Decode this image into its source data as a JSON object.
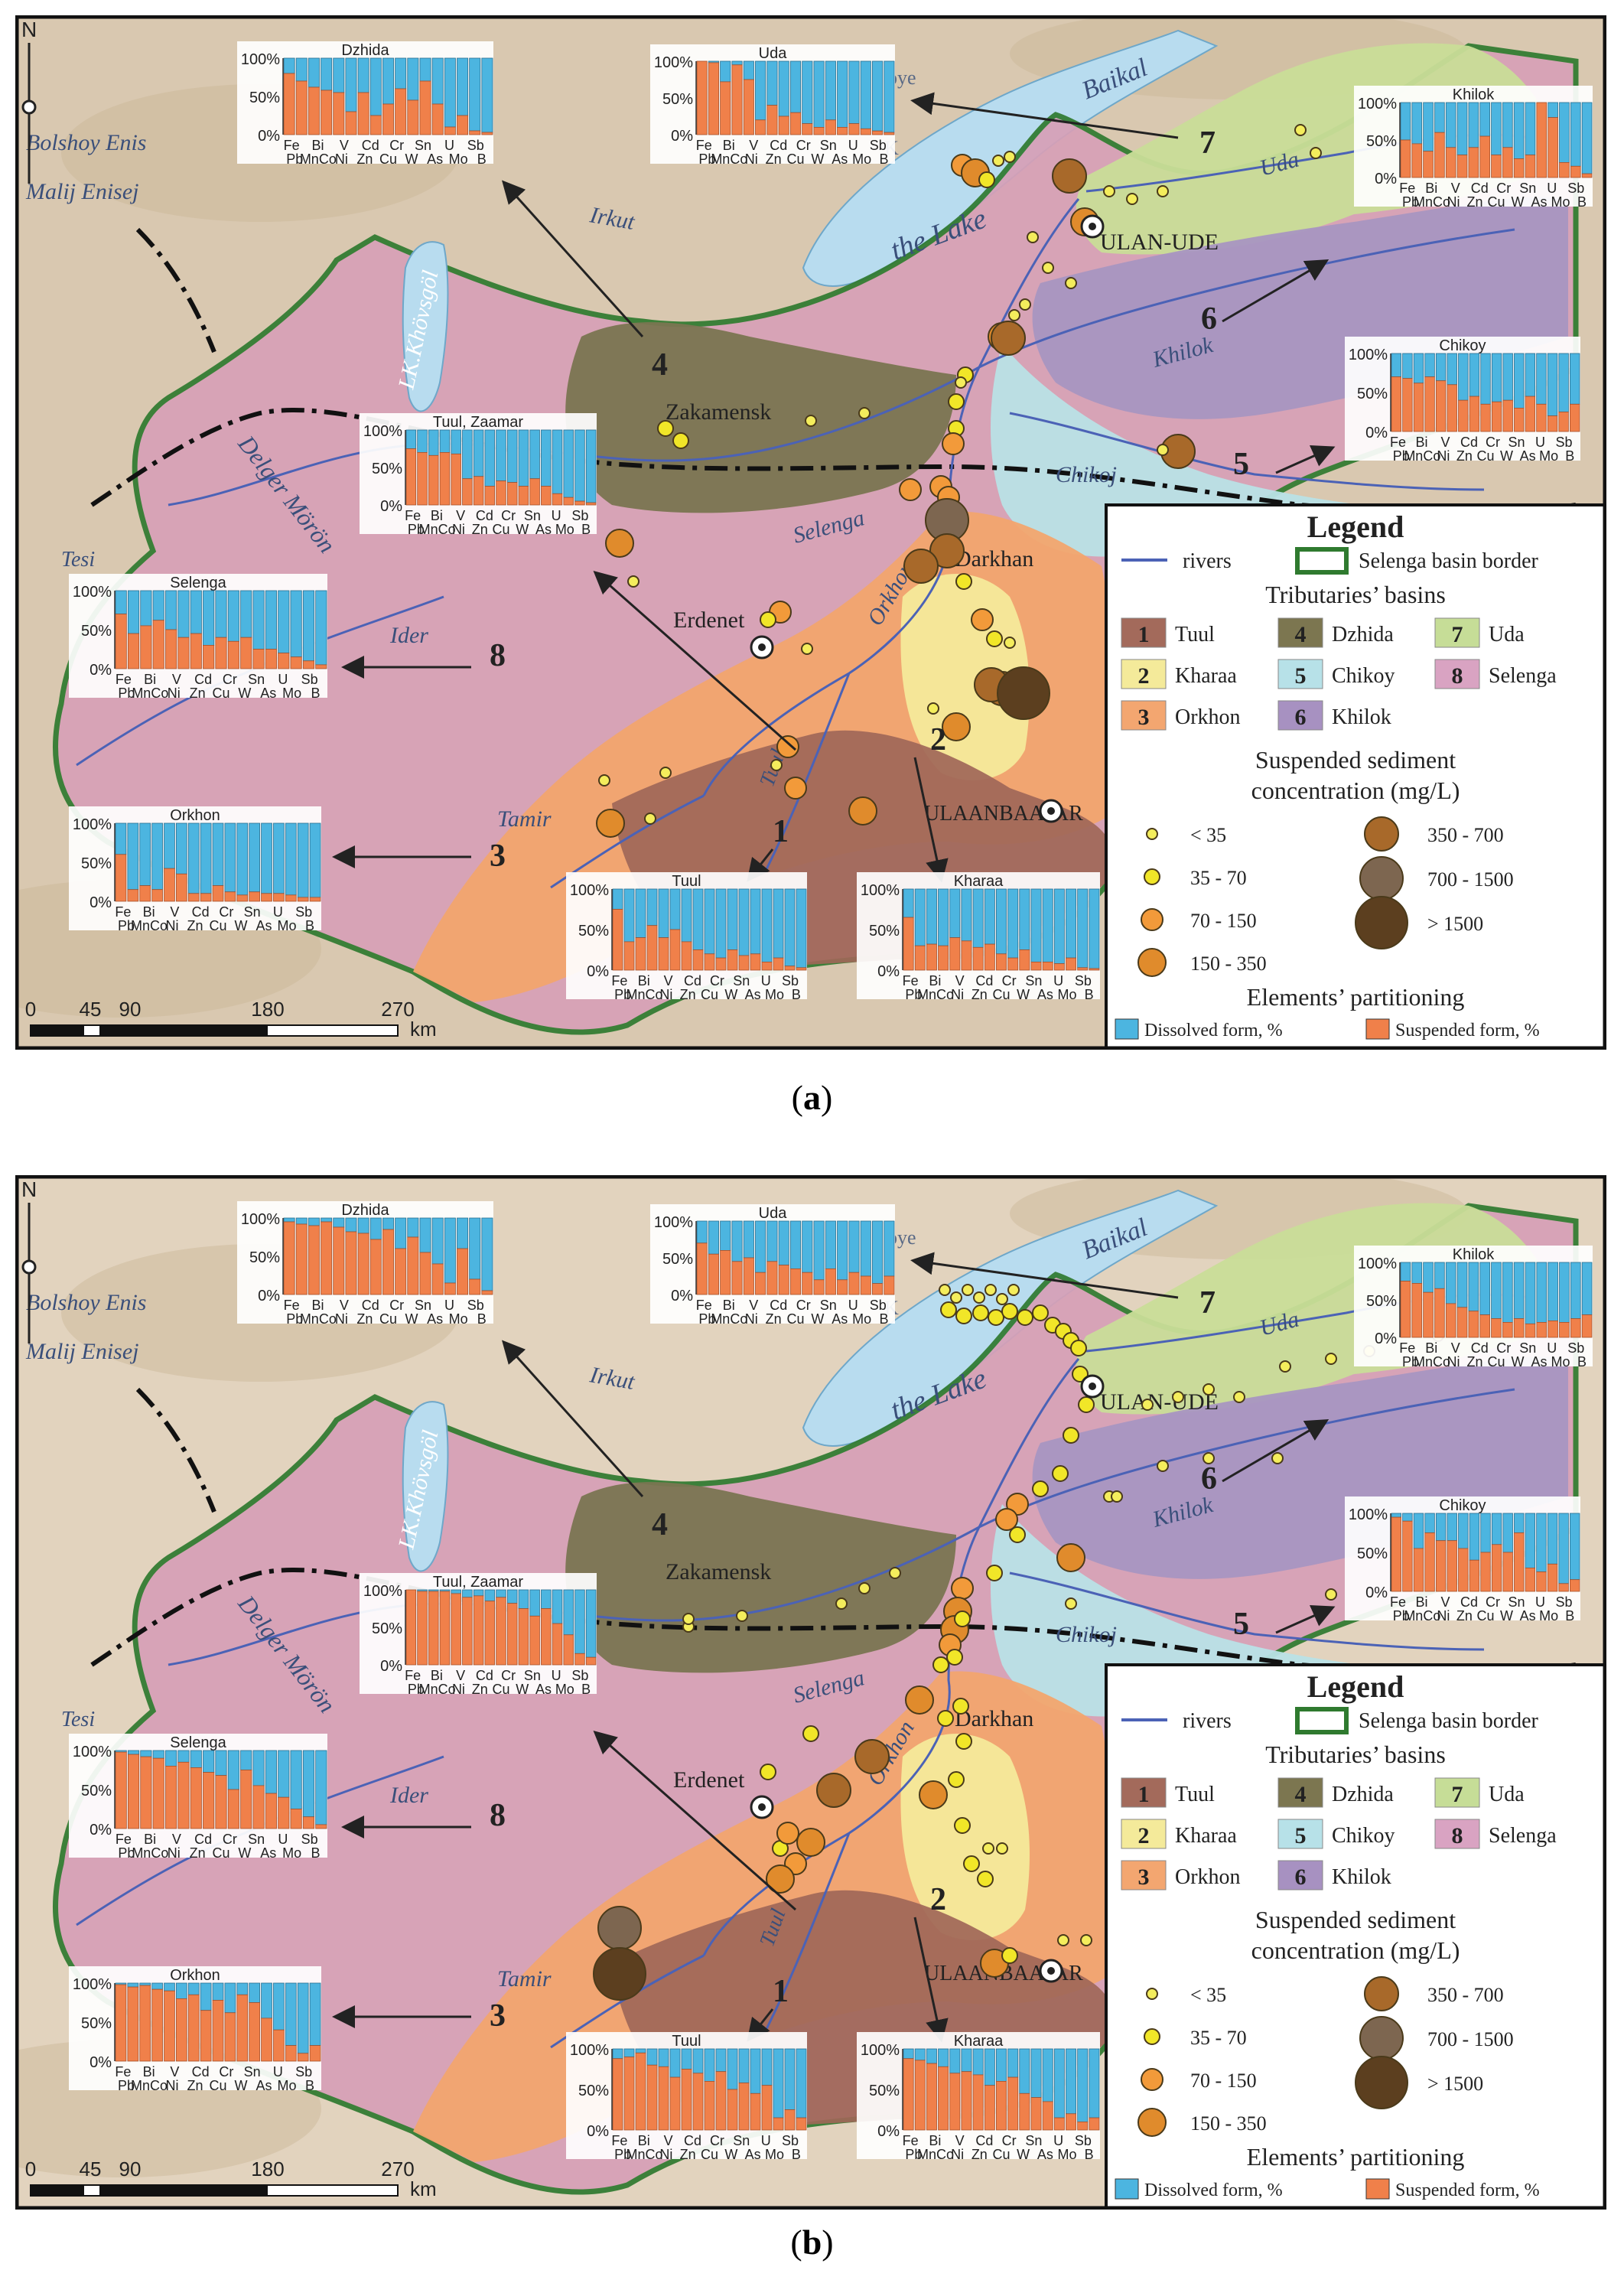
{
  "colors": {
    "dissolved": "#4cb5e0",
    "suspended": "#f0804a",
    "lake": "#b8dcef",
    "relief_a": "#d9c8b0",
    "relief_b": "#e2d3be",
    "border": "#2f7a2f"
  },
  "legend": {
    "title": "Legend",
    "rivers_label": "rivers",
    "border_label": "Selenga basin border",
    "tributaries_title": "Tributaries’ basins",
    "basins": [
      {
        "num": "1",
        "name": "Tuul",
        "color": "#a36a5b"
      },
      {
        "num": "4",
        "name": "Dzhida",
        "color": "#7c7650"
      },
      {
        "num": "7",
        "name": "Uda",
        "color": "#c6dd97"
      },
      {
        "num": "2",
        "name": "Kharaa",
        "color": "#f4ea9a"
      },
      {
        "num": "5",
        "name": "Chikoy",
        "color": "#b7e1e8"
      },
      {
        "num": "8",
        "name": "Selenga",
        "color": "#d9a3c2"
      },
      {
        "num": "3",
        "name": "Orkhon",
        "color": "#f3a670"
      },
      {
        "num": "6",
        "name": "Khilok",
        "color": "#a791c1"
      }
    ],
    "ssc_title_1": "Suspended sediment",
    "ssc_title_2": "concentration (mg/L)",
    "ssc_classes": [
      {
        "label": "< 35",
        "color": "#f4ed5c"
      },
      {
        "label": "35 - 70",
        "color": "#f1e628"
      },
      {
        "label": "70 - 150",
        "color": "#f29a3a"
      },
      {
        "label": "150 - 350",
        "color": "#e08b2c"
      },
      {
        "label": "350 - 700",
        "color": "#a8692a"
      },
      {
        "label": "700 - 1500",
        "color": "#7d6650"
      },
      {
        "label": "> 1500",
        "color": "#5c3f1f"
      }
    ],
    "partition_title": "Elements’ partitioning",
    "dissolved_label": "Dissolved form, %",
    "suspended_label": "Suspended form, %"
  },
  "elements_top": [
    "Fe",
    "Bi",
    "V",
    "Cd",
    "Cr",
    "Sn",
    "U",
    "Sb"
  ],
  "elements_bottom": [
    "Pb",
    "MnCo",
    "Ni",
    "Zn",
    "Cu",
    "W",
    "As",
    "Mo",
    "B"
  ],
  "axis_labels": [
    "100%",
    "50%",
    "0%"
  ],
  "scale": {
    "ticks": [
      "0",
      "45",
      "90",
      "180",
      "270"
    ],
    "unit": "km"
  },
  "north_label": "N",
  "panels": [
    {
      "id": "a",
      "caption_paren_open": "(",
      "caption_letter": "a",
      "caption_paren_close": ")",
      "map_labels": {
        "baikal": "Baikal",
        "lake": "the Lake",
        "irkut": "Irkut",
        "bolshoy": "Bolshoy Enis",
        "malij": "Malij Enisej",
        "khovsgol": "LK.Khövsgöl",
        "delger": "Delger Mörön",
        "tesiin": "Tesi",
        "ider": "Ider",
        "tamir": "Tamir",
        "selenga": "Selenga",
        "orkhon": "Orkhon",
        "tuul": "Tuul",
        "chikoj": "Chikoj",
        "khilok": "Khilok",
        "uda": "Uda",
        "zakamensk": "Zakamensk",
        "darkhan": "Darkhan",
        "erdenet": "Erdenet",
        "ulanude": "ULAN-UDE",
        "ulaanbaatar": "ULAANBAATAR",
        "oye": "oye",
        "k": "K"
      },
      "basin_numbers": [
        "1",
        "2",
        "3",
        "4",
        "5",
        "6",
        "7",
        "8"
      ],
      "charts": [
        {
          "key": "dzhida",
          "title": "Dzhida",
          "suspended": [
            80,
            70,
            62,
            58,
            55,
            30,
            55,
            25,
            40,
            60,
            45,
            70,
            40,
            10,
            25,
            5,
            3
          ]
        },
        {
          "key": "uda",
          "title": "Uda",
          "suspended": [
            100,
            98,
            72,
            95,
            75,
            20,
            40,
            25,
            30,
            15,
            10,
            20,
            10,
            15,
            8,
            5,
            3
          ]
        },
        {
          "key": "khilok",
          "title": "Khilok",
          "suspended": [
            50,
            45,
            35,
            60,
            40,
            30,
            40,
            55,
            30,
            40,
            25,
            30,
            100,
            80,
            20,
            15,
            5
          ]
        },
        {
          "key": "chikoy",
          "title": "Chikoy",
          "suspended": [
            70,
            68,
            62,
            70,
            65,
            60,
            40,
            45,
            35,
            38,
            40,
            30,
            45,
            35,
            20,
            25,
            35
          ]
        },
        {
          "key": "tuul_zaamar",
          "title": "Tuul, Zaamar",
          "suspended": [
            75,
            70,
            66,
            70,
            68,
            35,
            38,
            25,
            32,
            30,
            25,
            35,
            25,
            15,
            10,
            5,
            3
          ]
        },
        {
          "key": "selenga",
          "title": "Selenga",
          "suspended": [
            70,
            45,
            55,
            62,
            50,
            40,
            45,
            30,
            40,
            35,
            40,
            25,
            25,
            20,
            15,
            10,
            5
          ]
        },
        {
          "key": "orkhon",
          "title": "Orkhon",
          "suspended": [
            60,
            15,
            20,
            15,
            42,
            35,
            10,
            10,
            20,
            12,
            8,
            12,
            10,
            10,
            8,
            5,
            5
          ]
        },
        {
          "key": "tuul",
          "title": "Tuul",
          "suspended": [
            75,
            35,
            40,
            55,
            40,
            50,
            35,
            25,
            20,
            15,
            25,
            18,
            20,
            10,
            15,
            5,
            3
          ]
        },
        {
          "key": "kharaa",
          "title": "Kharaa",
          "suspended": [
            65,
            30,
            32,
            30,
            40,
            36,
            28,
            32,
            20,
            15,
            25,
            10,
            10,
            8,
            15,
            3,
            2
          ]
        }
      ]
    },
    {
      "id": "b",
      "caption_paren_open": "(",
      "caption_letter": "b",
      "caption_paren_close": ")",
      "map_labels": {
        "baikal": "Baikal",
        "lake": "the Lake",
        "irkut": "Irkut",
        "bolshoy": "Bolshoy Enis",
        "malij": "Malij Enisej",
        "khovsgol": "LK.Khövsgöl",
        "delger": "Delger Mörön",
        "tesiin": "Tesi",
        "ider": "Ider",
        "tamir": "Tamir",
        "selenga": "Selenga",
        "orkhon": "Orkhon",
        "tuul": "Tuul",
        "chikoj": "Chikoj",
        "khilok": "Khilok",
        "uda": "Uda",
        "zakamensk": "Zakamensk",
        "darkhan": "Darkhan",
        "erdenet": "Erdenet",
        "ulanude": "ULAN-UDE",
        "ulaanbaatar": "ULAANBAATAR",
        "oye": "oye",
        "k": "K"
      },
      "basin_numbers": [
        "1",
        "2",
        "3",
        "4",
        "5",
        "6",
        "7",
        "8"
      ],
      "charts": [
        {
          "key": "dzhida",
          "title": "Dzhida",
          "suspended": [
            95,
            92,
            90,
            95,
            88,
            82,
            80,
            72,
            85,
            60,
            75,
            55,
            40,
            15,
            60,
            20,
            5
          ]
        },
        {
          "key": "uda",
          "title": "Uda",
          "suspended": [
            70,
            55,
            60,
            45,
            50,
            30,
            45,
            40,
            35,
            30,
            20,
            35,
            20,
            30,
            25,
            15,
            25
          ]
        },
        {
          "key": "khilok",
          "title": "Khilok",
          "suspended": [
            75,
            72,
            60,
            65,
            45,
            40,
            35,
            30,
            25,
            20,
            25,
            18,
            20,
            22,
            20,
            25,
            30
          ]
        },
        {
          "key": "chikoy",
          "title": "Chikoy",
          "suspended": [
            95,
            90,
            55,
            75,
            65,
            65,
            55,
            40,
            50,
            60,
            50,
            75,
            30,
            25,
            35,
            10,
            15
          ]
        },
        {
          "key": "tuul_zaamar",
          "title": "Tuul, Zaamar",
          "suspended": [
            100,
            98,
            98,
            98,
            95,
            90,
            92,
            85,
            90,
            82,
            75,
            65,
            75,
            55,
            40,
            15,
            10
          ]
        },
        {
          "key": "selenga",
          "title": "Selenga",
          "suspended": [
            98,
            95,
            92,
            90,
            80,
            85,
            78,
            72,
            68,
            50,
            75,
            55,
            45,
            40,
            25,
            15,
            5
          ]
        },
        {
          "key": "orkhon",
          "title": "Orkhon",
          "suspended": [
            98,
            95,
            97,
            92,
            90,
            80,
            85,
            65,
            78,
            62,
            85,
            75,
            55,
            40,
            20,
            10,
            20
          ]
        },
        {
          "key": "tuul",
          "title": "Tuul",
          "suspended": [
            88,
            90,
            95,
            80,
            78,
            65,
            75,
            70,
            60,
            72,
            50,
            58,
            45,
            55,
            15,
            25,
            15
          ]
        },
        {
          "key": "kharaa",
          "title": "Kharaa",
          "suspended": [
            88,
            86,
            82,
            78,
            70,
            72,
            68,
            55,
            60,
            65,
            45,
            40,
            35,
            15,
            20,
            10,
            15
          ]
        }
      ]
    }
  ]
}
